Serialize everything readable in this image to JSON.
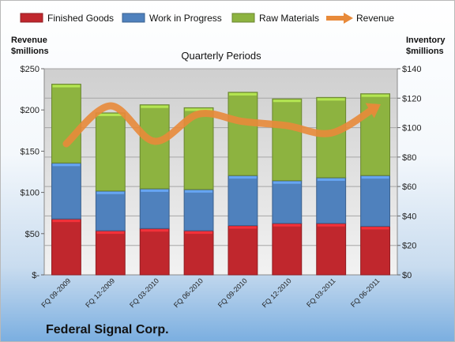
{
  "chart_data": {
    "type": "bar",
    "subtype": "stacked-bar-with-line",
    "title": "Quarterly Periods",
    "company": "Federal Signal Corp.",
    "categories": [
      "FQ 09-2009",
      "FQ 12-2009",
      "FQ 03-2010",
      "FQ 06-2010",
      "FQ 09-2010",
      "FQ 12-2010",
      "FQ 03-2011",
      "FQ 06-2011"
    ],
    "series": [
      {
        "name": "Finished Goods",
        "type": "bar",
        "axis": "right",
        "color": "#c0272d",
        "values": [
          38,
          30,
          31.5,
          30,
          33.5,
          35,
          35,
          33
        ]
      },
      {
        "name": "Work in Progress",
        "type": "bar",
        "axis": "right",
        "color": "#4f81bd",
        "values": [
          38,
          27,
          27,
          28,
          34,
          29,
          31,
          34.5
        ]
      },
      {
        "name": "Raw Materials",
        "type": "bar",
        "axis": "right",
        "color": "#8db340",
        "values": [
          53.5,
          53,
          57,
          55.5,
          56.5,
          55.5,
          54.5,
          55.5
        ]
      },
      {
        "name": "Revenue",
        "type": "line",
        "axis": "left",
        "color": "#e88a3a",
        "values": [
          159,
          205,
          162,
          195,
          186,
          181,
          172,
          203
        ]
      }
    ],
    "y_left": {
      "label": "Revenue\n$millions",
      "ticks": [
        "$-",
        "$50",
        "$100",
        "$150",
        "$200",
        "$250"
      ],
      "lim": [
        0,
        250
      ]
    },
    "y_right": {
      "label": "Inventory\n$millions",
      "ticks": [
        "$0",
        "$20",
        "$40",
        "$60",
        "$80",
        "$100",
        "$120",
        "$140"
      ],
      "lim": [
        0,
        140
      ]
    },
    "legend": {
      "position": "top",
      "entries": [
        "Finished Goods",
        "Work in Progress",
        "Raw Materials",
        "Revenue"
      ]
    },
    "grid": true
  }
}
